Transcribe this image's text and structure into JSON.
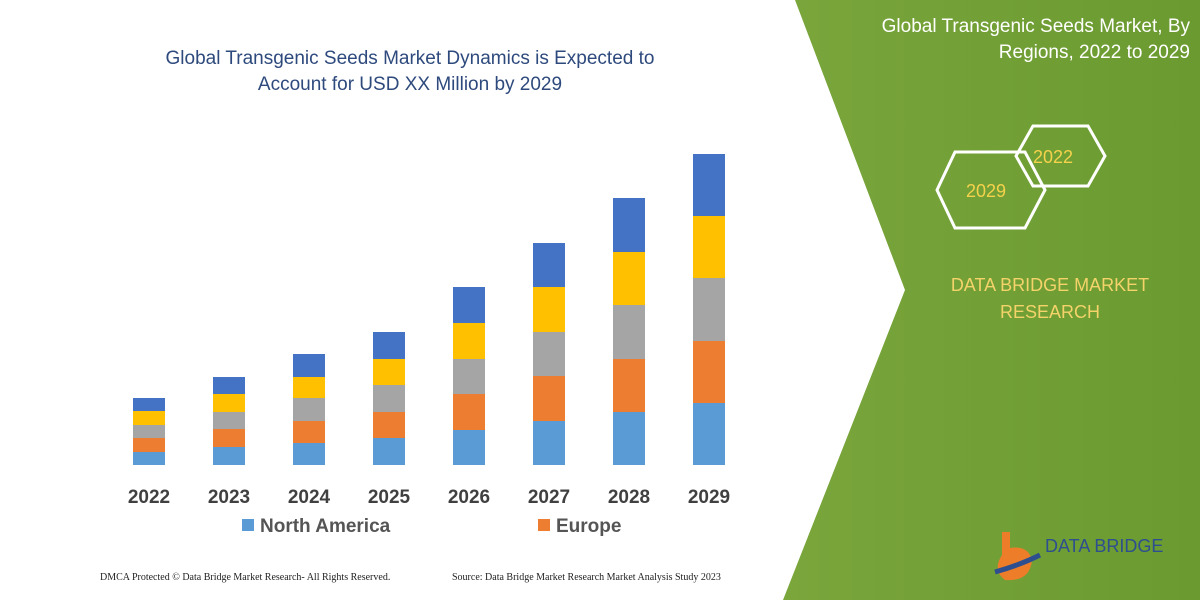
{
  "chart_data": {
    "type": "stacked-bar",
    "title": "Global Transgenic Seeds Market Dynamics is Expected to Account for USD XX Million by 2029",
    "categories": [
      "2022",
      "2023",
      "2024",
      "2025",
      "2026",
      "2027",
      "2028",
      "2029"
    ],
    "series": [
      {
        "name": "North America",
        "color": "#5b9bd5",
        "values": [
          13,
          18,
          22,
          27,
          35,
          44,
          53,
          62
        ]
      },
      {
        "name": "Europe",
        "color": "#ed7d31",
        "values": [
          14,
          18,
          22,
          26,
          36,
          45,
          53,
          62
        ]
      },
      {
        "color": "#a5a5a5",
        "values": [
          13,
          17,
          23,
          27,
          35,
          44,
          54,
          63
        ]
      },
      {
        "color": "#ffc000",
        "values": [
          14,
          18,
          21,
          26,
          36,
          45,
          53,
          62
        ]
      },
      {
        "color": "#4472c4",
        "values": [
          13,
          17,
          23,
          27,
          36,
          44,
          54,
          62
        ]
      }
    ]
  },
  "panel": {
    "title": "Global Transgenic Seeds Market, By Regions, 2022 to 2029",
    "hexagons": [
      "2029",
      "2022"
    ],
    "brand": "DATA BRIDGE MARKET RESEARCH",
    "logo": "DATA BRIDGE"
  },
  "footer": {
    "left": "DMCA Protected © Data Bridge Market Research-  All Rights Reserved.",
    "right": "Source: Data Bridge Market Research  Market Analysis Study 2023"
  }
}
